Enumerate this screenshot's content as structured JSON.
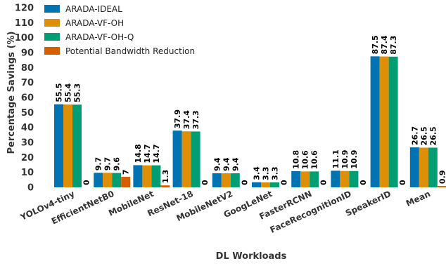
{
  "chart_data": {
    "type": "bar",
    "title": "",
    "xlabel": "DL Workloads",
    "ylabel": "Percentage Savings (%)",
    "ylim": [
      0,
      120
    ],
    "yticks": [
      0,
      10,
      20,
      30,
      40,
      50,
      60,
      70,
      80,
      90,
      100,
      110,
      120
    ],
    "grid": false,
    "legend_position": "top-left",
    "categories": [
      "YOLOv4-tiny",
      "EfficientNetB0",
      "MobileNet",
      "ResNet-18",
      "MobileNetV2",
      "GoogLeNet",
      "FasterRCNN",
      "FaceRecognitionID",
      "SpeakerID",
      "Mean"
    ],
    "series": [
      {
        "name": "ARADA-IDEAL",
        "color": "#0173b2",
        "values": [
          55.5,
          9.7,
          14.8,
          37.9,
          9.4,
          3.4,
          10.8,
          11.1,
          87.5,
          26.7
        ],
        "labels": [
          "55.5",
          "9.7",
          "14.8",
          "37.9",
          "9.4",
          "3.4",
          "10.8",
          "11.1",
          "87.5",
          "26.7"
        ]
      },
      {
        "name": "ARADA-VF-OH",
        "color": "#de8f05",
        "values": [
          55.4,
          9.7,
          14.7,
          37.4,
          9.4,
          3.3,
          10.6,
          10.9,
          87.4,
          26.5
        ],
        "labels": [
          "55.4",
          "9.7",
          "14.7",
          "37.4",
          "9.4",
          "3.3",
          "10.6",
          "10.9",
          "87.4",
          "26.5"
        ]
      },
      {
        "name": "ARADA-VF-OH-Q",
        "color": "#029e73",
        "values": [
          55.3,
          9.6,
          14.7,
          37.3,
          9.4,
          3.3,
          10.6,
          10.9,
          87.3,
          26.5
        ],
        "labels": [
          "55.3",
          "9.6",
          "14.7",
          "37.3",
          "9.4",
          "3.3",
          "10.6",
          "10.9",
          "87.3",
          "26.5"
        ]
      },
      {
        "name": "Potential Bandwidth Reduction",
        "color": "#d55e00",
        "values": [
          0,
          7,
          1.3,
          0,
          0,
          0,
          0,
          0,
          0,
          0.9
        ],
        "labels": [
          "0",
          "7",
          "1.3",
          "0",
          "0",
          "0",
          "0",
          "0",
          "0",
          "0.9"
        ]
      }
    ]
  }
}
